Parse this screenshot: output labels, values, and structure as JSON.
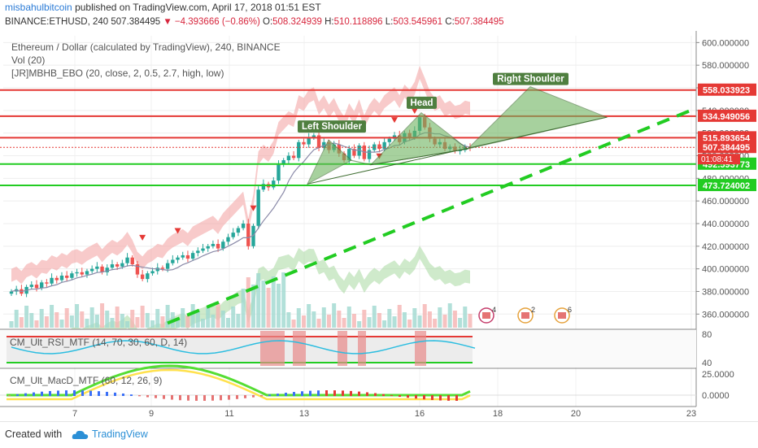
{
  "header": {
    "author": "misbahulbitcoin",
    "published_text": "published on TradingView.com, April 17, 2018 01:51 EST",
    "symbol": "BINANCE:ETHUSD, 240",
    "last": "507.384495",
    "change": "▼ −4.393666 (−0.86%)",
    "o_label": "O:",
    "o_value": "508.324939",
    "h_label": "H:",
    "h_value": "510.118896",
    "l_label": "L:",
    "l_value": "503.545961",
    "c_label": "C:",
    "c_value": "507.384495"
  },
  "legend": {
    "title": "Ethereum / Dollar (calculated by TradingView), 240, BINANCE",
    "vol": "Vol (20)",
    "ebo": "[JR]MBHB_EBO (20, close, 2, 0.5, 2.7, high, low)",
    "rsi": "CM_Ult_RSI_MTF (14, 70, 30, 60, D, 14)",
    "macd": "CM_Ult_MacD_MTF (60, 12, 26, 9)"
  },
  "footer": {
    "created_with": "Created with",
    "brand": "TradingView"
  },
  "colors": {
    "up": "#26a69a",
    "down": "#ef5350",
    "resistance": "#e53935",
    "support": "#22cc22",
    "pattern_fill": "#6db35e",
    "pattern_label_bg": "#4f7f3f"
  },
  "chart_data": {
    "type": "candlestick",
    "symbol": "ETHUSD",
    "interval": "240",
    "x_ticks": [
      "7",
      "9",
      "11",
      "13",
      "16",
      "18",
      "20",
      "23"
    ],
    "y_ticks": [
      "360.000000",
      "380.000000",
      "400.000000",
      "420.000000",
      "440.000000",
      "460.000000",
      "480.000000",
      "500.000000",
      "520.000000",
      "540.000000",
      "560.000000",
      "580.000000",
      "600.000000"
    ],
    "ylim": [
      348,
      606
    ],
    "close_path": [
      380,
      382,
      378,
      384,
      386,
      383,
      388,
      387,
      392,
      390,
      394,
      392,
      396,
      397,
      395,
      398,
      400,
      402,
      397,
      401,
      404,
      402,
      405,
      410,
      404,
      395,
      391,
      396,
      398,
      401,
      400,
      405,
      408,
      410,
      412,
      409,
      414,
      416,
      418,
      420,
      422,
      418,
      424,
      428,
      432,
      436,
      440,
      420,
      438,
      470,
      475,
      472,
      478,
      492,
      496,
      500,
      498,
      512,
      510,
      516,
      518,
      507,
      512,
      505,
      510,
      502,
      496,
      506,
      500,
      509,
      497,
      505,
      510,
      506,
      512,
      515,
      518,
      512,
      520,
      516,
      522,
      534,
      525,
      515,
      510,
      512,
      506,
      508,
      504,
      505,
      508,
      507
    ],
    "price_levels": [
      {
        "label": "558.033923",
        "value": 558.033923,
        "color": "#e53935"
      },
      {
        "label": "534.949056",
        "value": 534.949056,
        "color": "#e53935"
      },
      {
        "label": "515.893654",
        "value": 515.893654,
        "color": "#e53935"
      },
      {
        "label": "507.384495",
        "value": 507.384495,
        "color": "#e53935"
      },
      {
        "label": "492.593773",
        "value": 492.593773,
        "color": "#22cc22"
      },
      {
        "label": "473.724002",
        "value": 473.724002,
        "color": "#22cc22"
      }
    ],
    "countdown": "01:08:41",
    "pattern_labels": [
      "Left Shoulder",
      "Head",
      "Right Shoulder"
    ],
    "rsi": {
      "ticks": [
        "80",
        "40"
      ],
      "upper": 70,
      "lower": 30
    },
    "macd": {
      "ticks": [
        "25.0000",
        "0.0000"
      ]
    },
    "event_counts": [
      "4",
      "2",
      "6"
    ]
  }
}
